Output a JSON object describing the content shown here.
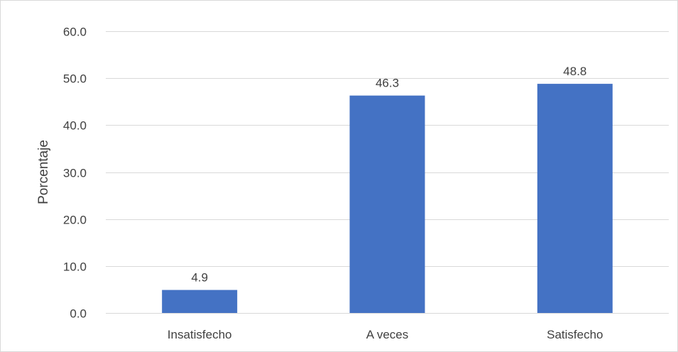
{
  "chart_data": {
    "type": "bar",
    "title": "",
    "xlabel": "",
    "ylabel": "Porcentaje",
    "categories": [
      "Insatisfecho",
      "A veces",
      "Satisfecho"
    ],
    "values": [
      4.9,
      46.3,
      48.8
    ],
    "value_labels": [
      "4.9",
      "46.3",
      "48.8"
    ],
    "ylim": [
      0,
      60
    ],
    "yticks": [
      0,
      10,
      20,
      30,
      40,
      50,
      60
    ],
    "ytick_labels": [
      "0.0",
      "10.0",
      "20.0",
      "30.0",
      "40.0",
      "50.0",
      "60.0"
    ],
    "grid": true,
    "legend": "none",
    "bar_color": "#4472c4",
    "grid_color": "#d9d9d9",
    "text_color": "#404040"
  }
}
